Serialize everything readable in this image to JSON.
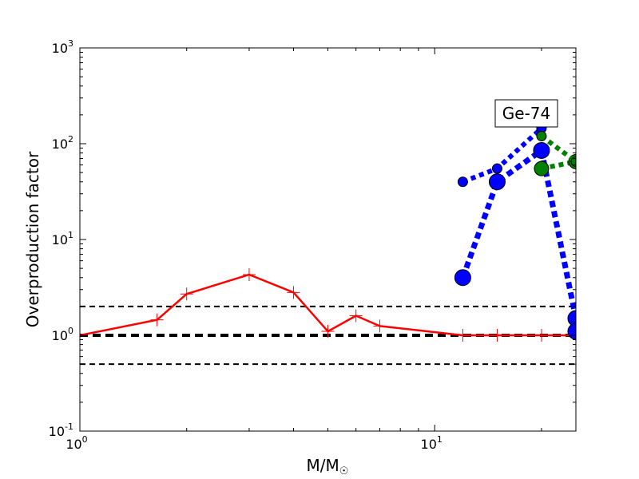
{
  "chart_data": {
    "type": "line",
    "title": "",
    "xlabel": "M/M",
    "xlabel_sub": "☉",
    "ylabel": "Overproduction factor",
    "xscale": "log",
    "yscale": "log",
    "xlim": [
      1,
      25
    ],
    "ylim": [
      0.1,
      1000
    ],
    "grid": false,
    "annotation": "Ge-74",
    "x_ticks": [
      {
        "value": 1,
        "base": "10",
        "exp": "0"
      },
      {
        "value": 10,
        "base": "10",
        "exp": "1"
      }
    ],
    "y_ticks": [
      {
        "value": 0.1,
        "base": "10",
        "exp": "-1"
      },
      {
        "value": 1,
        "base": "10",
        "exp": "0"
      },
      {
        "value": 10,
        "base": "10",
        "exp": "1"
      },
      {
        "value": 100,
        "base": "10",
        "exp": "2"
      },
      {
        "value": 1000,
        "base": "10",
        "exp": "3"
      }
    ],
    "reference_lines": [
      {
        "y": 2.0,
        "color": "#000000",
        "dash": "dashed",
        "width": 2
      },
      {
        "y": 1.0,
        "color": "#000000",
        "dash": "dashed",
        "width": 4
      },
      {
        "y": 0.5,
        "color": "#000000",
        "dash": "dashed",
        "width": 2
      }
    ],
    "series": [
      {
        "color": "#ff0000",
        "style": "solid",
        "marker": "plus",
        "x": [
          1,
          1.65,
          2,
          3,
          4,
          5,
          6,
          7,
          12,
          15,
          20,
          25
        ],
        "y": [
          1.0,
          1.45,
          2.7,
          4.3,
          2.8,
          1.1,
          1.6,
          1.25,
          1.0,
          1.0,
          1.0,
          1.0
        ]
      },
      {
        "color": "#0000ff",
        "style": "dotted",
        "marker": "circle",
        "marker_size": "small",
        "x": [
          12,
          15,
          20
        ],
        "y": [
          40,
          55,
          145
        ]
      },
      {
        "color": "#0000ff",
        "style": "dotted",
        "marker": "circle",
        "marker_size": "large",
        "x": [
          12,
          15,
          20,
          25,
          25
        ],
        "y": [
          4.0,
          40,
          85,
          1.5,
          1.1
        ]
      },
      {
        "color": "#008000",
        "style": "dotted",
        "marker": "circle",
        "marker_size": "medium",
        "x": [
          20,
          25
        ],
        "y": [
          55,
          65
        ]
      },
      {
        "color": "#008000",
        "style": "dotted",
        "marker": "circle",
        "marker_size": "small",
        "x": [
          20,
          25
        ],
        "y": [
          120,
          65
        ]
      }
    ]
  }
}
